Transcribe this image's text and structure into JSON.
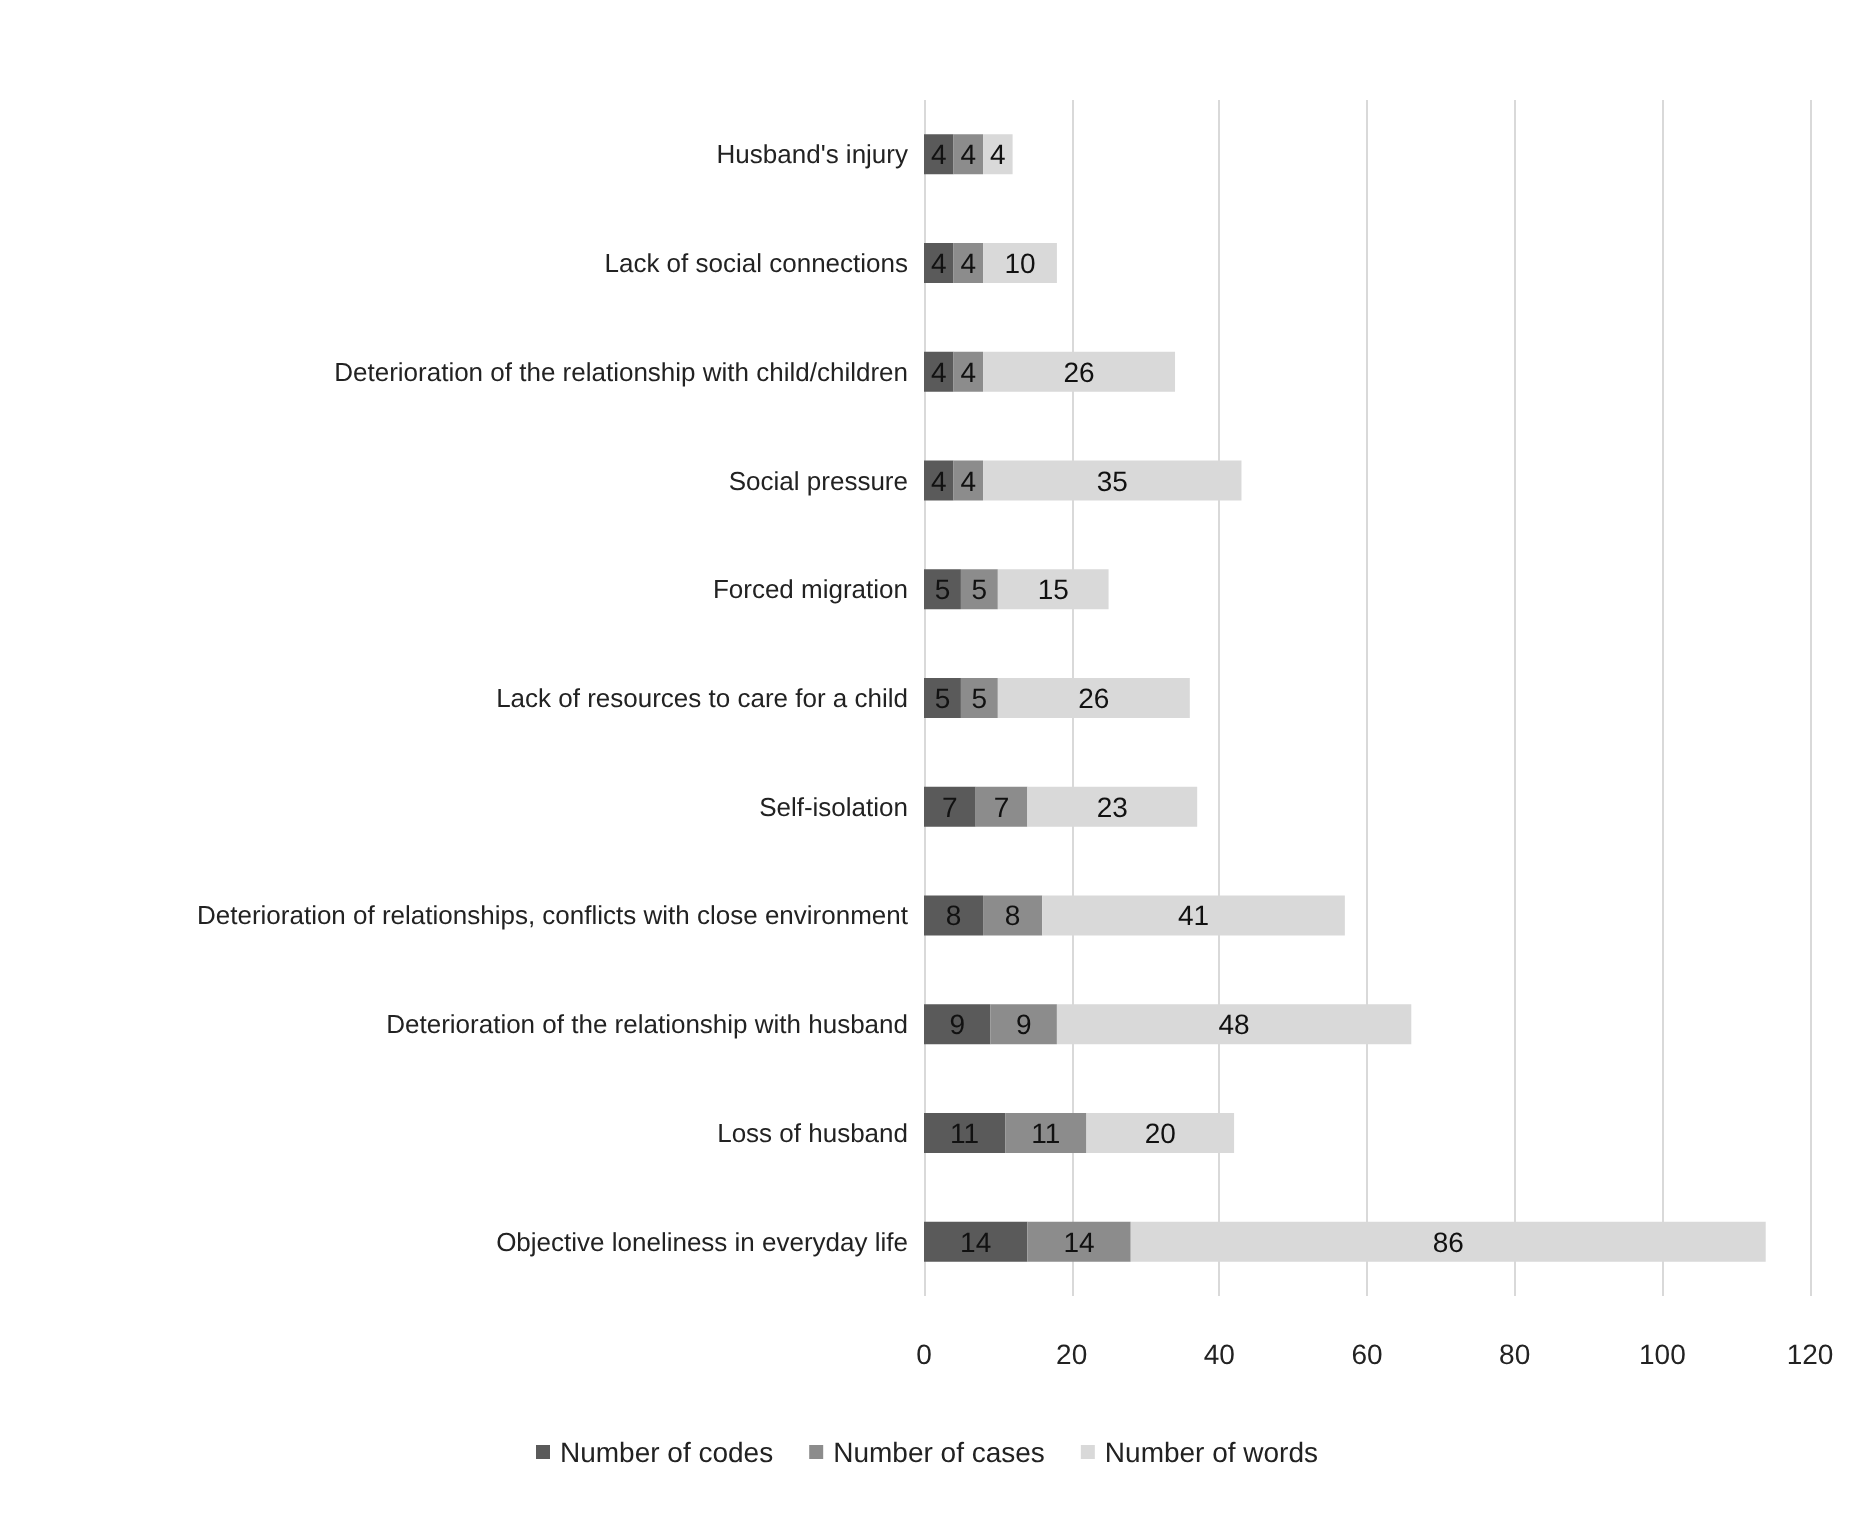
{
  "chart_data": {
    "type": "bar",
    "orientation": "horizontal",
    "stacked": true,
    "data_labels": true,
    "categories": [
      "Husband's injury",
      "Lack of social connections",
      "Deterioration of the relationship with child/children",
      "Social pressure",
      "Forced migration",
      "Lack of resources to care for a child",
      "Self-isolation",
      "Deterioration of relationships, conflicts with close environment",
      "Deterioration of the relationship with husband",
      "Loss of husband",
      "Objective loneliness in everyday life"
    ],
    "series": [
      {
        "name": "Number of codes",
        "color": "#5a5a5a",
        "values": [
          4,
          4,
          4,
          4,
          5,
          5,
          7,
          8,
          9,
          11,
          14
        ]
      },
      {
        "name": "Number of cases",
        "color": "#8c8c8c",
        "values": [
          4,
          4,
          4,
          4,
          5,
          5,
          7,
          8,
          9,
          11,
          14
        ]
      },
      {
        "name": "Number of words",
        "color": "#d9d9d9",
        "values": [
          4,
          10,
          26,
          35,
          15,
          26,
          23,
          41,
          48,
          20,
          86
        ]
      }
    ],
    "xlim": [
      0,
      120
    ],
    "xticks": [
      0,
      20,
      40,
      60,
      80,
      100,
      120
    ],
    "grid": "x",
    "legend": "bottom"
  }
}
